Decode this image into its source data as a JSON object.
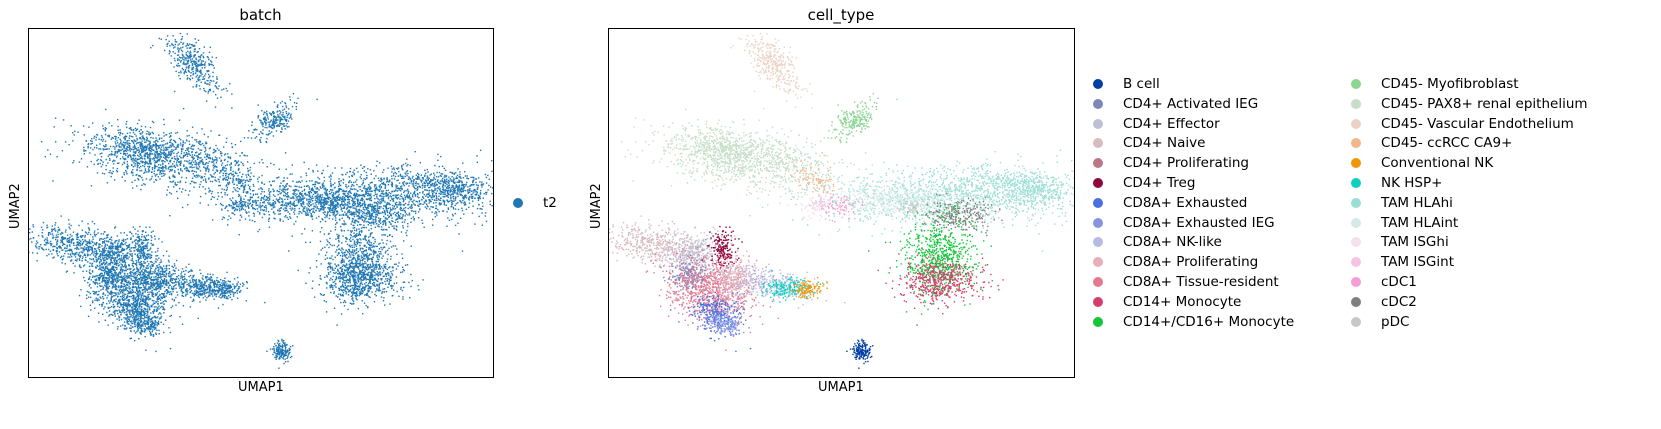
{
  "chart_data": [
    {
      "type": "scatter",
      "title": "batch",
      "xlabel": "UMAP1",
      "ylabel": "UMAP2",
      "grid": false,
      "legend_position": "right",
      "series": [
        {
          "name": "t2",
          "color": "#1f77b4"
        }
      ]
    },
    {
      "type": "scatter",
      "title": "cell_type",
      "xlabel": "UMAP1",
      "ylabel": "UMAP2",
      "grid": false,
      "legend_position": "right",
      "series": [
        {
          "name": "B cell",
          "color": "#023fa5"
        },
        {
          "name": "CD4+ Activated IEG",
          "color": "#7d87b9"
        },
        {
          "name": "CD4+ Effector",
          "color": "#bec1d4"
        },
        {
          "name": "CD4+ Naive",
          "color": "#d6bcc0"
        },
        {
          "name": "CD4+ Proliferating",
          "color": "#bb7784"
        },
        {
          "name": "CD4+ Treg",
          "color": "#8e063b"
        },
        {
          "name": "CD8A+ Exhausted",
          "color": "#4a6fe3"
        },
        {
          "name": "CD8A+ Exhausted IEG",
          "color": "#8595e1"
        },
        {
          "name": "CD8A+ NK-like",
          "color": "#b5bbe3"
        },
        {
          "name": "CD8A+ Proliferating",
          "color": "#e6afb9"
        },
        {
          "name": "CD8A+ Tissue-resident",
          "color": "#e07b91"
        },
        {
          "name": "CD14+ Monocyte",
          "color": "#d33f6a"
        },
        {
          "name": "CD14+/CD16+ Monocyte",
          "color": "#11c638"
        },
        {
          "name": "CD45- Myofibroblast",
          "color": "#8dd593"
        },
        {
          "name": "CD45- PAX8+ renal epithelium",
          "color": "#c6dec7"
        },
        {
          "name": "CD45- Vascular Endothelium",
          "color": "#ead3c6"
        },
        {
          "name": "CD45- ccRCC CA9+",
          "color": "#f0b98d"
        },
        {
          "name": "Conventional NK",
          "color": "#ef9708"
        },
        {
          "name": "NK HSP+",
          "color": "#0fcfc0"
        },
        {
          "name": "TAM HLAhi",
          "color": "#9cded6"
        },
        {
          "name": "TAM HLAint",
          "color": "#d5eae7"
        },
        {
          "name": "TAM ISGhi",
          "color": "#f3e1eb"
        },
        {
          "name": "TAM ISGint",
          "color": "#f6c4e1"
        },
        {
          "name": "cDC1",
          "color": "#f79cd4"
        },
        {
          "name": "cDC2",
          "color": "#7f7f7f"
        },
        {
          "name": "pDC",
          "color": "#c7c7c7"
        }
      ]
    }
  ]
}
